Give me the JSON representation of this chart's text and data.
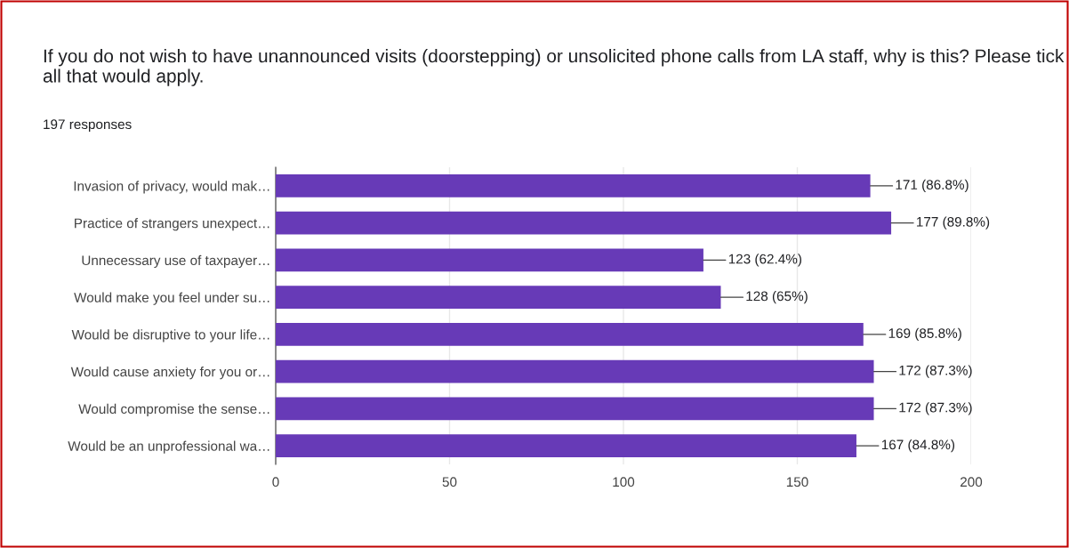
{
  "chart_data": {
    "type": "bar",
    "orientation": "horizontal",
    "title": "If you do not wish to have unannounced visits (doorstepping) or unsolicited phone calls from LA staff, why is this? Please tick all that would apply.",
    "subtitle": "197 responses",
    "categories": [
      "Invasion of privacy, would mak…",
      "Practice of strangers unexpect…",
      "Unnecessary use of taxpayer…",
      "Would make you feel under su…",
      "Would be disruptive to your life…",
      "Would cause anxiety for you or…",
      "Would compromise the sense…",
      "Would be an unprofessional wa…"
    ],
    "values": [
      171,
      177,
      123,
      128,
      169,
      172,
      172,
      167
    ],
    "value_labels": [
      "171 (86.8%)",
      "177 (89.8%)",
      "123 (62.4%)",
      "128 (65%)",
      "169 (85.8%)",
      "172 (87.3%)",
      "172 (87.3%)",
      "167 (84.8%)"
    ],
    "color": "#673ab7",
    "xlim": [
      0,
      200
    ],
    "xticks": [
      0,
      50,
      100,
      150,
      200
    ],
    "grid": "x",
    "legend": false
  }
}
